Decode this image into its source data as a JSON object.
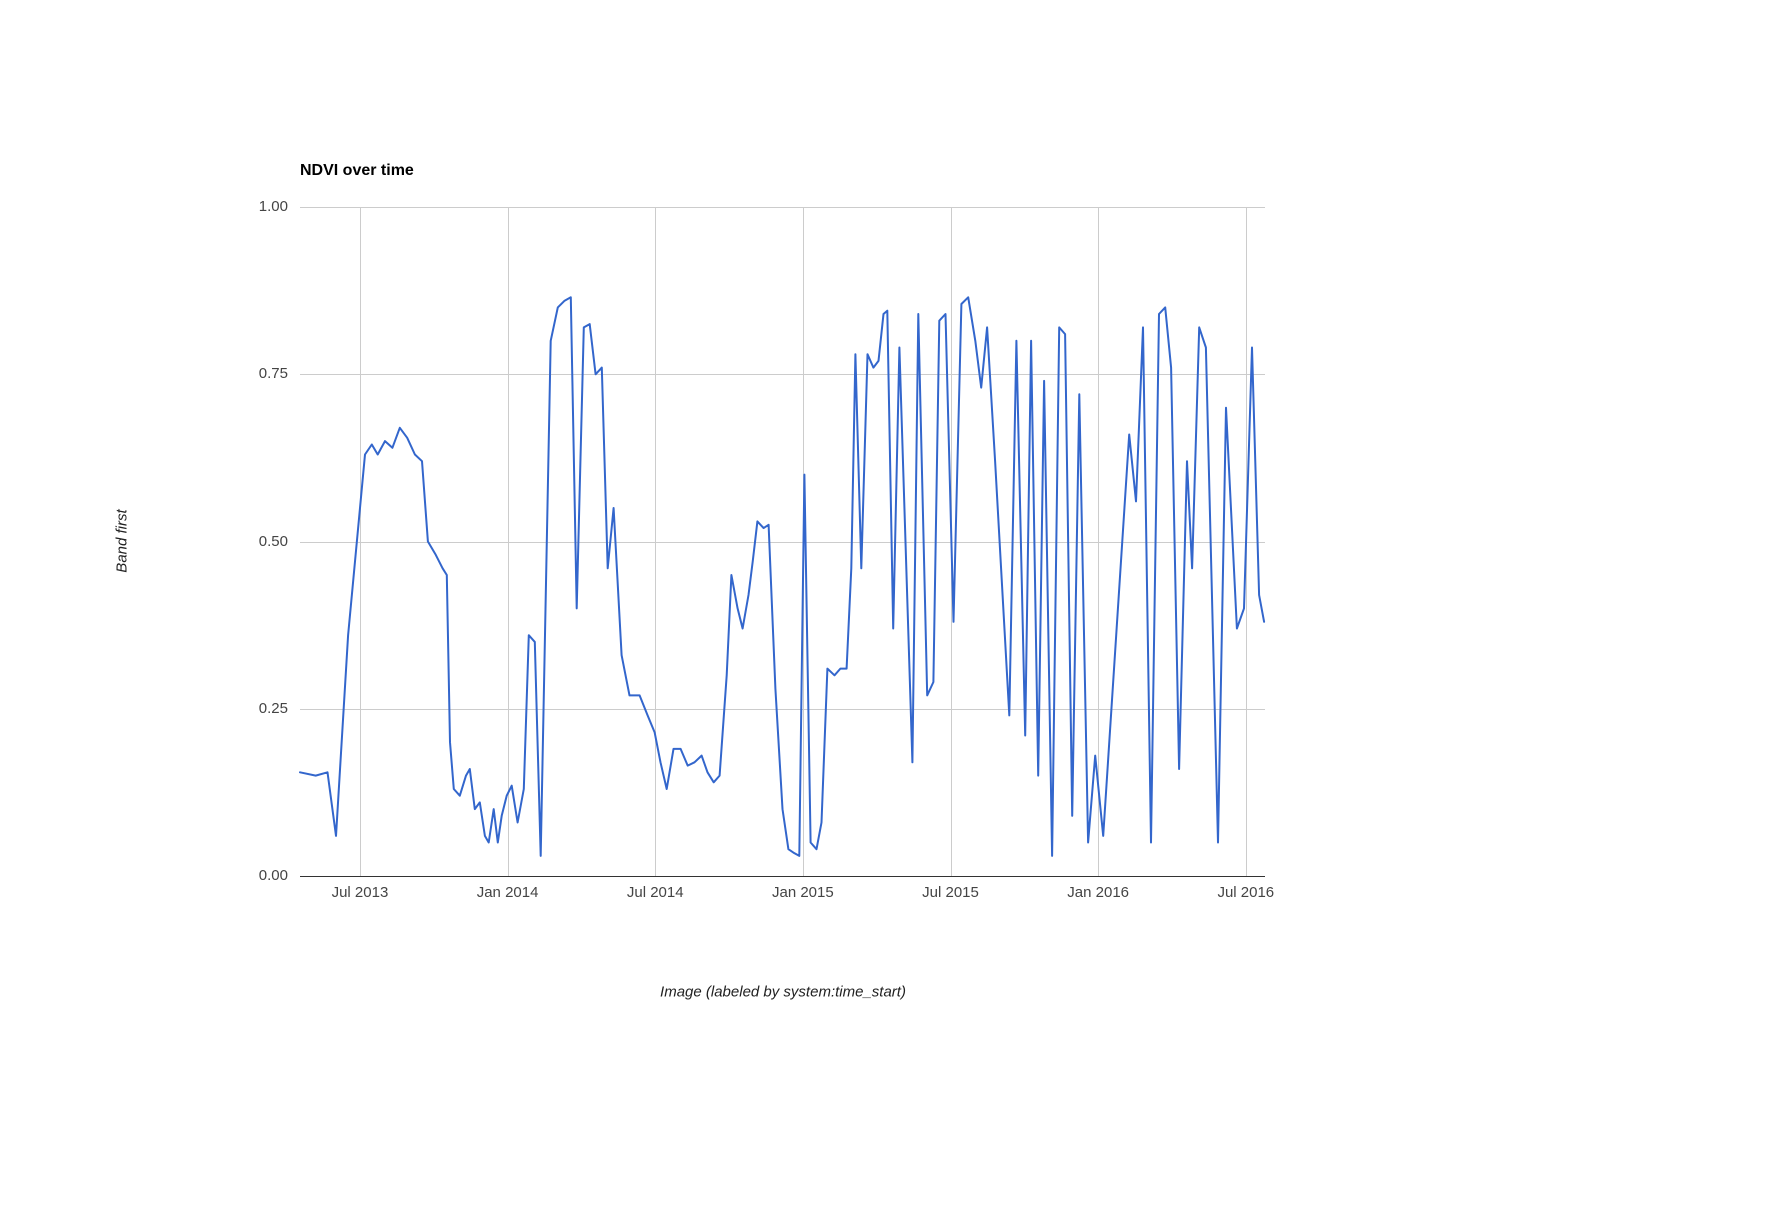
{
  "chart_data": {
    "type": "line",
    "title": "NDVI over time",
    "xlabel": "Image (labeled by system:time_start)",
    "ylabel": "Band first",
    "legend": "none",
    "grid": true,
    "colors": {
      "line": "#3366cc",
      "grid": "#cccccc",
      "baseline": "#333333",
      "tick_text": "#444444",
      "axis_title_text": "#222222",
      "title_text": "#000000",
      "background": "#ffffff"
    },
    "xlim": [
      2013.297,
      2016.565
    ],
    "ylim": [
      0,
      1
    ],
    "x_ticks": [
      {
        "t": 2013.5,
        "label": "Jul 2013"
      },
      {
        "t": 2014.0,
        "label": "Jan 2014"
      },
      {
        "t": 2014.5,
        "label": "Jul 2014"
      },
      {
        "t": 2015.0,
        "label": "Jan 2015"
      },
      {
        "t": 2015.5,
        "label": "Jul 2015"
      },
      {
        "t": 2016.0,
        "label": "Jan 2016"
      },
      {
        "t": 2016.5,
        "label": "Jul 2016"
      }
    ],
    "y_ticks": [
      {
        "v": 0.0,
        "label": "0.00"
      },
      {
        "v": 0.25,
        "label": "0.25"
      },
      {
        "v": 0.5,
        "label": "0.50"
      },
      {
        "v": 0.75,
        "label": "0.75"
      },
      {
        "v": 1.0,
        "label": "1.00"
      }
    ],
    "series": [
      {
        "name": "NDVI",
        "points": [
          [
            2013.297,
            0.155
          ],
          [
            2013.35,
            0.15
          ],
          [
            2013.39,
            0.155
          ],
          [
            2013.419,
            0.06
          ],
          [
            2013.46,
            0.36
          ],
          [
            2013.517,
            0.63
          ],
          [
            2013.54,
            0.645
          ],
          [
            2013.56,
            0.63
          ],
          [
            2013.585,
            0.65
          ],
          [
            2013.61,
            0.64
          ],
          [
            2013.635,
            0.67
          ],
          [
            2013.66,
            0.655
          ],
          [
            2013.686,
            0.63
          ],
          [
            2013.71,
            0.62
          ],
          [
            2013.73,
            0.5
          ],
          [
            2013.757,
            0.48
          ],
          [
            2013.78,
            0.46
          ],
          [
            2013.794,
            0.45
          ],
          [
            2013.805,
            0.2
          ],
          [
            2013.818,
            0.13
          ],
          [
            2013.838,
            0.12
          ],
          [
            2013.859,
            0.15
          ],
          [
            2013.872,
            0.16
          ],
          [
            2013.889,
            0.1
          ],
          [
            2013.906,
            0.11
          ],
          [
            2013.923,
            0.06
          ],
          [
            2013.936,
            0.05
          ],
          [
            2013.953,
            0.1
          ],
          [
            2013.967,
            0.05
          ],
          [
            2013.98,
            0.09
          ],
          [
            2013.997,
            0.12
          ],
          [
            2014.014,
            0.135
          ],
          [
            2014.034,
            0.08
          ],
          [
            2014.055,
            0.13
          ],
          [
            2014.072,
            0.36
          ],
          [
            2014.092,
            0.35
          ],
          [
            2014.112,
            0.03
          ],
          [
            2014.146,
            0.8
          ],
          [
            2014.17,
            0.85
          ],
          [
            2014.193,
            0.86
          ],
          [
            2014.214,
            0.865
          ],
          [
            2014.234,
            0.4
          ],
          [
            2014.258,
            0.82
          ],
          [
            2014.278,
            0.825
          ],
          [
            2014.298,
            0.75
          ],
          [
            2014.319,
            0.76
          ],
          [
            2014.339,
            0.46
          ],
          [
            2014.359,
            0.55
          ],
          [
            2014.386,
            0.33
          ],
          [
            2014.413,
            0.27
          ],
          [
            2014.447,
            0.27
          ],
          [
            2014.474,
            0.24
          ],
          [
            2014.498,
            0.215
          ],
          [
            2014.518,
            0.17
          ],
          [
            2014.539,
            0.13
          ],
          [
            2014.562,
            0.19
          ],
          [
            2014.586,
            0.19
          ],
          [
            2014.61,
            0.165
          ],
          [
            2014.633,
            0.17
          ],
          [
            2014.657,
            0.18
          ],
          [
            2014.677,
            0.155
          ],
          [
            2014.698,
            0.14
          ],
          [
            2014.718,
            0.15
          ],
          [
            2014.742,
            0.3
          ],
          [
            2014.758,
            0.45
          ],
          [
            2014.779,
            0.4
          ],
          [
            2014.796,
            0.37
          ],
          [
            2014.816,
            0.42
          ],
          [
            2014.83,
            0.47
          ],
          [
            2014.846,
            0.53
          ],
          [
            2014.867,
            0.52
          ],
          [
            2014.884,
            0.525
          ],
          [
            2014.907,
            0.28
          ],
          [
            2014.931,
            0.1
          ],
          [
            2014.951,
            0.04
          ],
          [
            2014.968,
            0.035
          ],
          [
            2014.988,
            0.03
          ],
          [
            2015.005,
            0.6
          ],
          [
            2015.026,
            0.05
          ],
          [
            2015.046,
            0.04
          ],
          [
            2015.063,
            0.08
          ],
          [
            2015.083,
            0.31
          ],
          [
            2015.107,
            0.3
          ],
          [
            2015.127,
            0.31
          ],
          [
            2015.148,
            0.31
          ],
          [
            2015.164,
            0.46
          ],
          [
            2015.178,
            0.78
          ],
          [
            2015.198,
            0.46
          ],
          [
            2015.219,
            0.78
          ],
          [
            2015.239,
            0.76
          ],
          [
            2015.256,
            0.77
          ],
          [
            2015.273,
            0.84
          ],
          [
            2015.286,
            0.845
          ],
          [
            2015.306,
            0.37
          ],
          [
            2015.327,
            0.79
          ],
          [
            2015.371,
            0.17
          ],
          [
            2015.391,
            0.84
          ],
          [
            2015.421,
            0.27
          ],
          [
            2015.442,
            0.29
          ],
          [
            2015.462,
            0.83
          ],
          [
            2015.483,
            0.84
          ],
          [
            2015.51,
            0.38
          ],
          [
            2015.537,
            0.855
          ],
          [
            2015.56,
            0.865
          ],
          [
            2015.584,
            0.8
          ],
          [
            2015.604,
            0.73
          ],
          [
            2015.624,
            0.82
          ],
          [
            2015.651,
            0.62
          ],
          [
            2015.699,
            0.24
          ],
          [
            2015.723,
            0.8
          ],
          [
            2015.753,
            0.21
          ],
          [
            2015.773,
            0.8
          ],
          [
            2015.797,
            0.15
          ],
          [
            2015.817,
            0.74
          ],
          [
            2015.844,
            0.03
          ],
          [
            2015.868,
            0.82
          ],
          [
            2015.888,
            0.81
          ],
          [
            2015.912,
            0.09
          ],
          [
            2015.936,
            0.72
          ],
          [
            2015.966,
            0.05
          ],
          [
            2015.99,
            0.18
          ],
          [
            2016.017,
            0.06
          ],
          [
            2016.105,
            0.66
          ],
          [
            2016.128,
            0.56
          ],
          [
            2016.152,
            0.82
          ],
          [
            2016.179,
            0.05
          ],
          [
            2016.206,
            0.84
          ],
          [
            2016.227,
            0.85
          ],
          [
            2016.247,
            0.76
          ],
          [
            2016.274,
            0.16
          ],
          [
            2016.301,
            0.62
          ],
          [
            2016.318,
            0.46
          ],
          [
            2016.342,
            0.82
          ],
          [
            2016.365,
            0.79
          ],
          [
            2016.406,
            0.05
          ],
          [
            2016.433,
            0.7
          ],
          [
            2016.47,
            0.37
          ],
          [
            2016.494,
            0.4
          ],
          [
            2016.521,
            0.79
          ],
          [
            2016.545,
            0.42
          ],
          [
            2016.562,
            0.38
          ]
        ]
      }
    ]
  }
}
